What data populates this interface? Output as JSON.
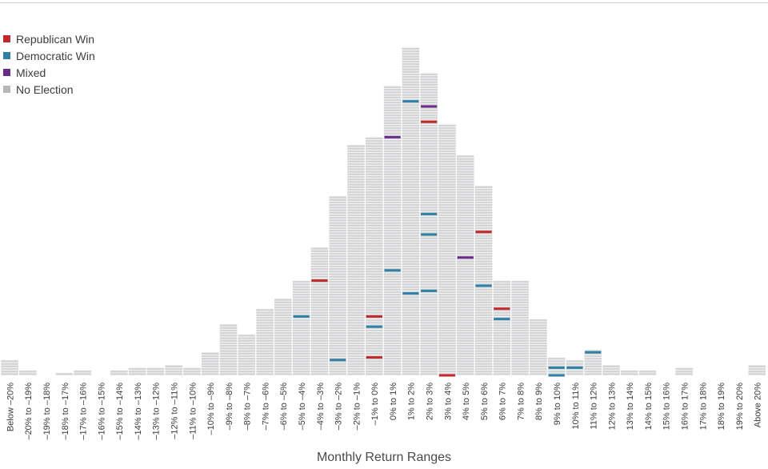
{
  "chart_data": {
    "type": "bar",
    "xlabel": "Monthly Return Ranges",
    "ylabel": "",
    "unit_note": "each stacked block = one month",
    "legend": [
      {
        "name": "Republican Win",
        "color": "#c0282d"
      },
      {
        "name": "Democratic Win",
        "color": "#2f7fa6"
      },
      {
        "name": "Mixed",
        "color": "#6a2d8c"
      },
      {
        "name": "No Election",
        "color": "#b5b7b9"
      }
    ],
    "categories": [
      "Below –20%",
      "–20% to –19%",
      "–19% to –18%",
      "–18% to –17%",
      "–17% to –16%",
      "–16% to –15%",
      "–15% to –14%",
      "–14% to –13%",
      "–13% to –12%",
      "–12% to –11%",
      "–11% to –10%",
      "–10% to –9%",
      "–9% to –8%",
      "–8% to –7%",
      "–7% to –6%",
      "–6% to –5%",
      "–5% to –4%",
      "–4% to –3%",
      "–3% to –2%",
      "–2% to –1%",
      "–1% to 0%",
      "0% to 1%",
      "1% to 2%",
      "2% to 3%",
      "3% to 4%",
      "4% to 5%",
      "5% to 6%",
      "6% to 7%",
      "7% to 8%",
      "8% to 9%",
      "9% to 10%",
      "10% to 11%",
      "11% to 12%",
      "12% to 13%",
      "13% to 14%",
      "14% to 15%",
      "15% to 16%",
      "16% to 17%",
      "17% to 18%",
      "18% to 19%",
      "19% to 20%",
      "Above 20%"
    ],
    "values": [
      6,
      2,
      0,
      1,
      2,
      0,
      2,
      3,
      3,
      4,
      3,
      9,
      20,
      16,
      26,
      30,
      37,
      50,
      70,
      90,
      93,
      113,
      128,
      118,
      98,
      86,
      74,
      37,
      37,
      22,
      7,
      6,
      10,
      4,
      2,
      2,
      0,
      3,
      0,
      0,
      0,
      4
    ],
    "election_marks": [
      {
        "category": "–5% to –4%",
        "level": 23,
        "series": "Democratic Win"
      },
      {
        "category": "–4% to –3%",
        "level": 37,
        "series": "Republican Win"
      },
      {
        "category": "–3% to –2%",
        "level": 6,
        "series": "Democratic Win"
      },
      {
        "category": "–1% to 0%",
        "level": 7,
        "series": "Republican Win"
      },
      {
        "category": "–1% to 0%",
        "level": 19,
        "series": "Democratic Win"
      },
      {
        "category": "–1% to 0%",
        "level": 23,
        "series": "Republican Win"
      },
      {
        "category": "0% to 1%",
        "level": 41,
        "series": "Democratic Win"
      },
      {
        "category": "0% to 1%",
        "level": 93,
        "series": "Mixed"
      },
      {
        "category": "1% to 2%",
        "level": 32,
        "series": "Democratic Win"
      },
      {
        "category": "1% to 2%",
        "level": 107,
        "series": "Democratic Win"
      },
      {
        "category": "2% to 3%",
        "level": 33,
        "series": "Democratic Win"
      },
      {
        "category": "2% to 3%",
        "level": 55,
        "series": "Democratic Win"
      },
      {
        "category": "2% to 3%",
        "level": 63,
        "series": "Democratic Win"
      },
      {
        "category": "2% to 3%",
        "level": 99,
        "series": "Republican Win"
      },
      {
        "category": "2% to 3%",
        "level": 105,
        "series": "Mixed"
      },
      {
        "category": "3% to 4%",
        "level": 0,
        "series": "Republican Win"
      },
      {
        "category": "4% to 5%",
        "level": 46,
        "series": "Mixed"
      },
      {
        "category": "5% to 6%",
        "level": 35,
        "series": "Democratic Win"
      },
      {
        "category": "5% to 6%",
        "level": 56,
        "series": "Republican Win"
      },
      {
        "category": "6% to 7%",
        "level": 22,
        "series": "Democratic Win"
      },
      {
        "category": "6% to 7%",
        "level": 26,
        "series": "Republican Win"
      },
      {
        "category": "9% to 10%",
        "level": 0,
        "series": "Democratic Win"
      },
      {
        "category": "9% to 10%",
        "level": 3,
        "series": "Democratic Win"
      },
      {
        "category": "10% to 11%",
        "level": 3,
        "series": "Democratic Win"
      },
      {
        "category": "11% to 12%",
        "level": 9,
        "series": "Democratic Win"
      }
    ],
    "grid": false
  }
}
